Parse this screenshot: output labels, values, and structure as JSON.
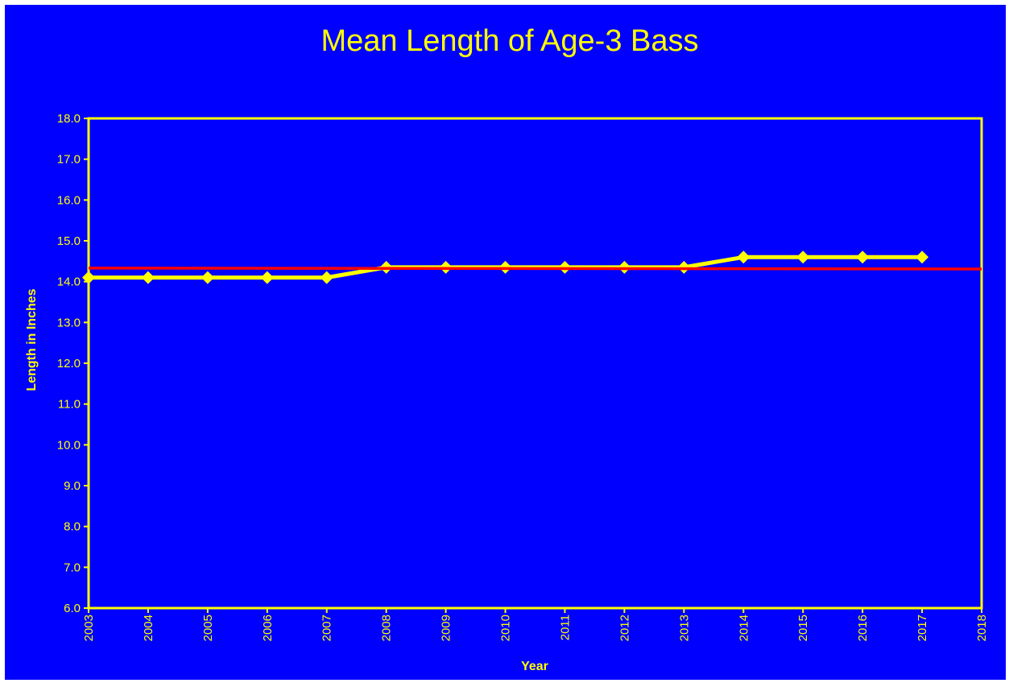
{
  "chart_data": {
    "type": "line",
    "title": "Mean Length of Age-3 Bass",
    "xlabel": "Year",
    "ylabel": "Length in Inches",
    "xlim": [
      2003,
      2018
    ],
    "ylim": [
      6.0,
      18.0
    ],
    "x_ticks": [
      "2003",
      "2004",
      "2005",
      "2006",
      "2007",
      "2008",
      "2009",
      "2010",
      "2011",
      "2012",
      "2013",
      "2014",
      "2015",
      "2016",
      "2017",
      "2018"
    ],
    "y_ticks": [
      "6.0",
      "7.0",
      "8.0",
      "9.0",
      "10.0",
      "11.0",
      "12.0",
      "13.0",
      "14.0",
      "15.0",
      "16.0",
      "17.0",
      "18.0"
    ],
    "grid": false,
    "series": [
      {
        "x": [
          2003,
          2004,
          2005,
          2006,
          2007,
          2008,
          2009,
          2010,
          2011,
          2012,
          2013,
          2014,
          2015,
          2016,
          2017
        ],
        "values": [
          14.1,
          14.1,
          14.1,
          14.1,
          14.1,
          14.35,
          14.35,
          14.35,
          14.35,
          14.35,
          14.35,
          14.6,
          14.6,
          14.6,
          14.6
        ],
        "color": "#ffff00",
        "marker": "diamond"
      },
      {
        "x": [
          2003,
          2018
        ],
        "values": [
          14.33,
          14.31
        ],
        "color": "#ff0000",
        "marker": "none"
      }
    ],
    "colors": {
      "background": "#0000ff",
      "axes": "#ffff00",
      "text": "#ffff00"
    }
  }
}
